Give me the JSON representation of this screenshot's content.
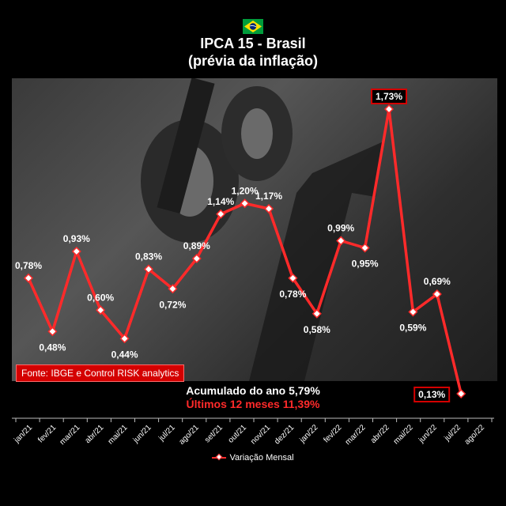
{
  "header": {
    "title_line1": "IPCA 15 - Brasil",
    "title_line2": "(prévia da inflação)"
  },
  "source": "Fonte: IBGE e Control RISK analytics",
  "summary": {
    "accumulated_year": "Acumulado do ano 5,79%",
    "last_12_months": "Últimos 12 meses 11,39%"
  },
  "legend": {
    "label": "Variação Mensal"
  },
  "colors": {
    "line": "#ff2a2a",
    "accent_box": "#d40000",
    "background": "#000000"
  },
  "icons": {
    "flag": "brazil-flag-icon"
  },
  "chart_data": {
    "type": "line",
    "title": "IPCA 15 - Brasil (prévia da inflação)",
    "categories": [
      "jan/21",
      "fev/21",
      "mar/21",
      "abr/21",
      "mai/21",
      "jun/21",
      "jul/21",
      "ago/21",
      "set/21",
      "out/21",
      "nov/21",
      "dez/21",
      "jan/22",
      "fev/22",
      "mar/22",
      "abr/22",
      "mai/22",
      "jun/22",
      "jul/22",
      "ago/22"
    ],
    "series": [
      {
        "name": "Variação Mensal",
        "values": [
          0.78,
          0.48,
          0.93,
          0.6,
          0.44,
          0.83,
          0.72,
          0.89,
          1.14,
          1.2,
          1.17,
          0.78,
          0.58,
          0.99,
          0.95,
          1.73,
          0.59,
          0.69,
          0.13,
          null
        ],
        "labels": [
          "0,78%",
          "0,48%",
          "0,93%",
          "0,60%",
          "0,44%",
          "0,83%",
          "0,72%",
          "0,89%",
          "1,14%",
          "1,20%",
          "1,17%",
          "0,78%",
          "0,58%",
          "0,99%",
          "0,95%",
          "1,73%",
          "0,59%",
          "0,69%",
          "0,13%",
          ""
        ],
        "label_positions": [
          "above",
          "below",
          "above",
          "above",
          "below",
          "above",
          "below",
          "above",
          "above",
          "above",
          "above",
          "below",
          "below",
          "above",
          "below",
          "above",
          "below",
          "above",
          "left",
          ""
        ],
        "boxed_labels": [
          "1,73%",
          "0,13%"
        ]
      }
    ],
    "ylim": [
      0.13,
      1.73
    ],
    "grid": false,
    "legend_position": "bottom"
  }
}
